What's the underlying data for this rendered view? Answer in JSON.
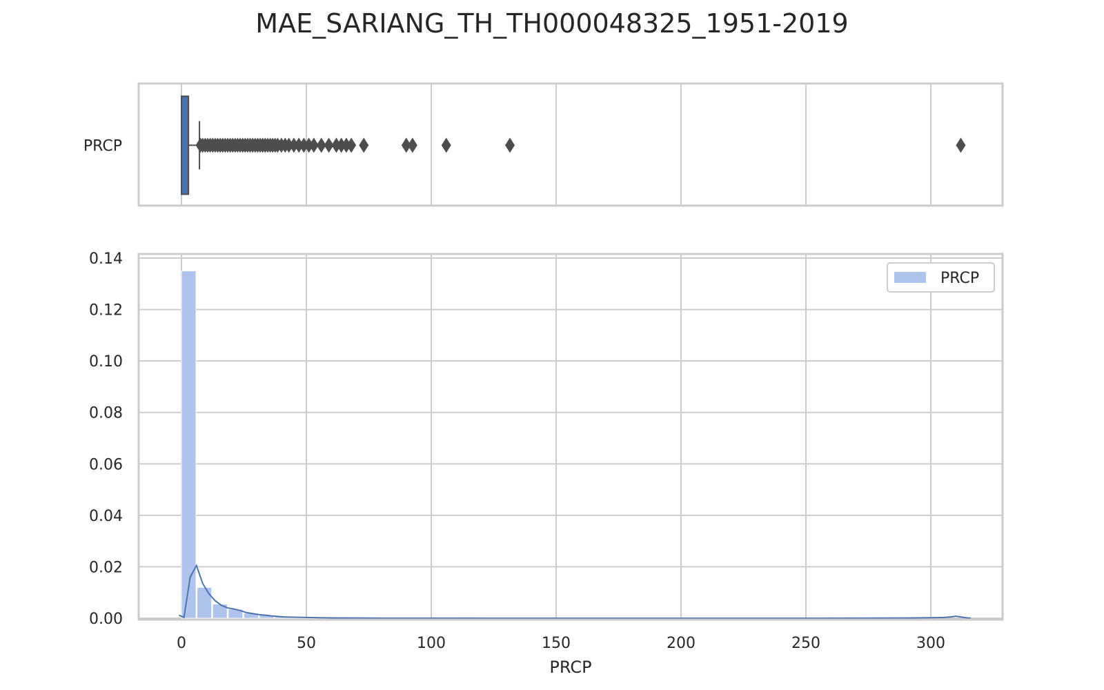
{
  "chart_data": [
    {
      "type": "box",
      "title": "MAE_SARIANG_TH_TH000048325_1951-2019",
      "ylabel_category": "PRCP",
      "xlim": [
        -17,
        330
      ],
      "x_ticks": [
        0,
        50,
        100,
        150,
        200,
        250,
        300
      ],
      "box": {
        "q1": 0.0,
        "median": 0.0,
        "q3": 2.8,
        "whisker_low": 0.0,
        "whisker_high": 7.2
      },
      "fliers": [
        7.6,
        8.5,
        9.5,
        10.5,
        11.5,
        12.5,
        13.5,
        14.5,
        15.5,
        16.5,
        17.5,
        18.5,
        19.5,
        20.5,
        21.5,
        22.5,
        23.5,
        24.5,
        25.5,
        26.5,
        27.5,
        28.5,
        29.5,
        30.5,
        31.5,
        32.5,
        33.5,
        34.5,
        35.5,
        36.5,
        37.5,
        38.5,
        40,
        41.5,
        43,
        45,
        47,
        49,
        51,
        53,
        56,
        59,
        62,
        64,
        66,
        68,
        73,
        90,
        92.5,
        106,
        131.5,
        312
      ],
      "colors": {
        "box": "#4c72b0",
        "line": "#4d4d4d"
      }
    },
    {
      "type": "histogram",
      "xlabel": "PRCP",
      "ylabel": "",
      "xlim": [
        -17,
        330
      ],
      "ylim": [
        0,
        0.14
      ],
      "x_ticks": [
        0,
        50,
        100,
        150,
        200,
        250,
        300
      ],
      "y_ticks": [
        "0.00",
        "0.02",
        "0.04",
        "0.06",
        "0.08",
        "0.10",
        "0.12",
        "0.14"
      ],
      "legend": {
        "label": "PRCP",
        "position": "top-right"
      },
      "bin_width": 6.24,
      "bin_start": 0,
      "bin_heights": [
        0.135,
        0.012,
        0.0055,
        0.0035,
        0.002,
        0.0012,
        0.0007,
        0.0004,
        0.0003,
        0.0002,
        0.00015,
        0.0001,
        0.0001,
        5e-05,
        5e-05,
        3e-05,
        2e-05,
        2e-05,
        2e-05,
        1e-05,
        1e-05,
        1e-05
      ],
      "kde_x": [
        -1,
        1,
        3.5,
        6,
        8.5,
        11,
        13.5,
        16,
        18.5,
        21,
        23.5,
        26,
        28.5,
        31,
        33.5,
        36,
        38.5,
        41,
        45,
        50,
        55,
        60,
        70,
        80,
        100,
        150,
        200,
        250,
        290,
        300,
        305,
        308,
        310,
        312,
        314,
        316
      ],
      "kde_y": [
        0.0012,
        0.0003,
        0.016,
        0.0205,
        0.0135,
        0.0095,
        0.0068,
        0.005,
        0.004,
        0.0036,
        0.003,
        0.0022,
        0.0018,
        0.0014,
        0.0012,
        0.0009,
        0.0007,
        0.0005,
        0.0004,
        0.0003,
        0.0002,
        0.00015,
        0.0001,
        5e-05,
        3e-05,
        1e-05,
        1e-05,
        1e-05,
        0.0001,
        0.0002,
        0.0003,
        0.0005,
        0.0008,
        0.0005,
        0.0002,
        0.0
      ],
      "colors": {
        "hist": "#aec4ec",
        "kde": "#4c72b0"
      }
    }
  ]
}
